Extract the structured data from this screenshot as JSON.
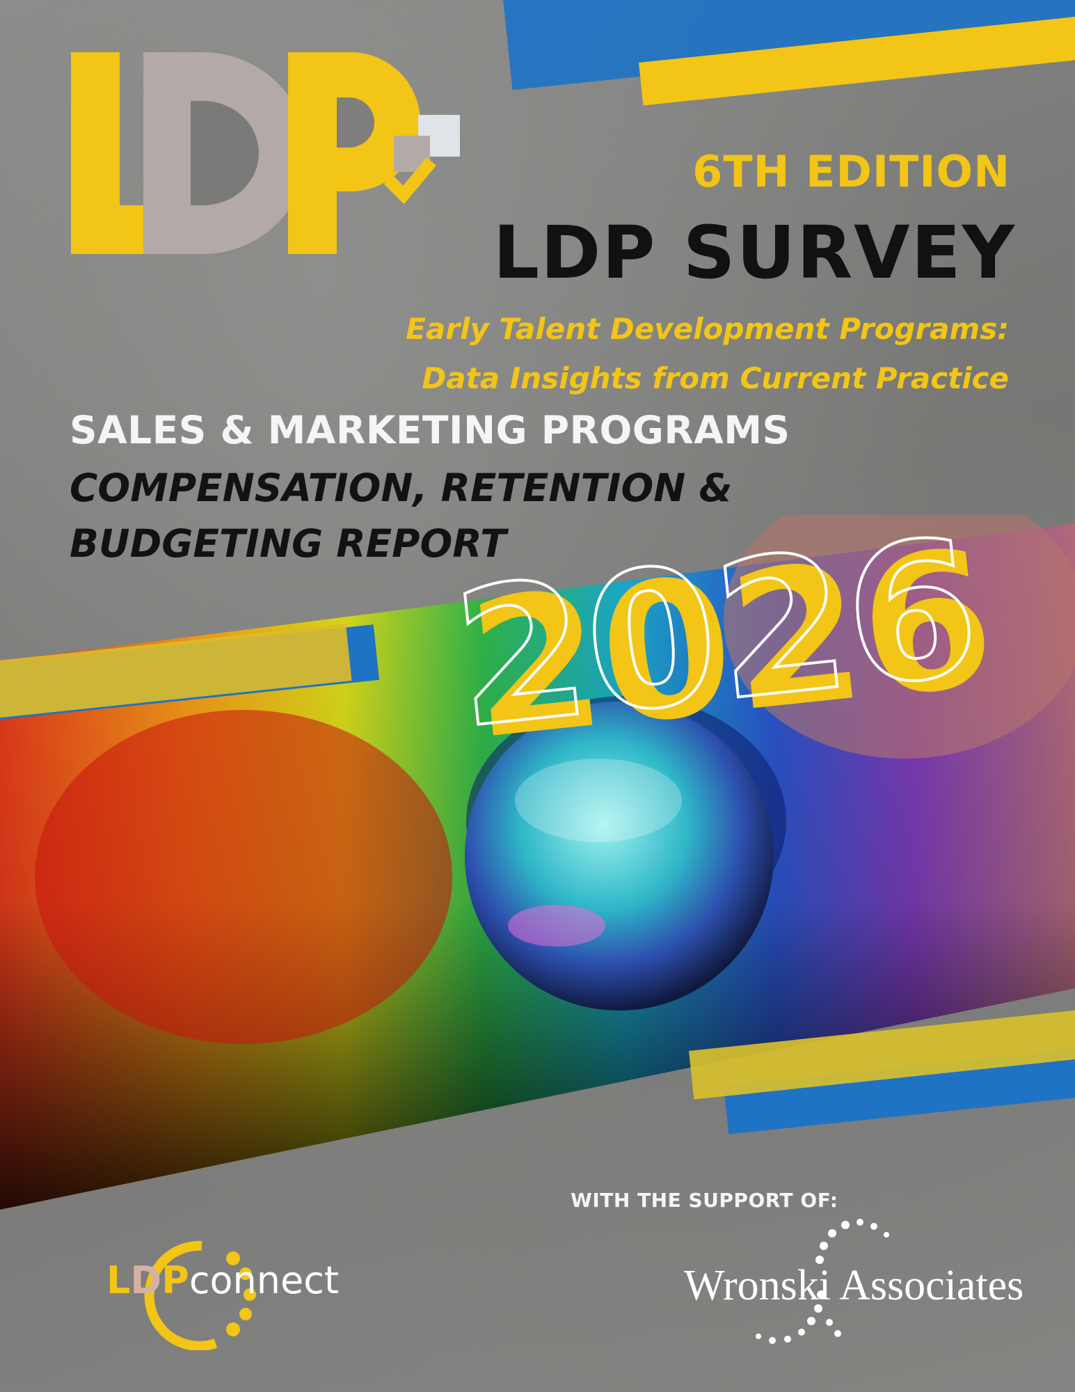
{
  "logo": {
    "letters": "LDP"
  },
  "header": {
    "edition": "6TH EDITION",
    "title": "LDP SURVEY",
    "subtitle_line1": "Early Talent Development Programs:",
    "subtitle_line2": "Data Insights from Current Practice"
  },
  "report": {
    "program": "SALES & MARKETING PROGRAMS",
    "line1": "COMPENSATION, RETENTION &",
    "line2": "BUDGETING REPORT"
  },
  "year": "2026",
  "support": {
    "label": "WITH THE SUPPORT OF:",
    "partner1": {
      "part1": "L",
      "part2": "D",
      "part3": "P",
      "part4": "connect"
    },
    "partner2": "Wronski Associates"
  },
  "colors": {
    "yellow": "#f2c517",
    "blue": "#1f73c4",
    "taupe": "#b3a9a6",
    "dark": "#111111"
  }
}
